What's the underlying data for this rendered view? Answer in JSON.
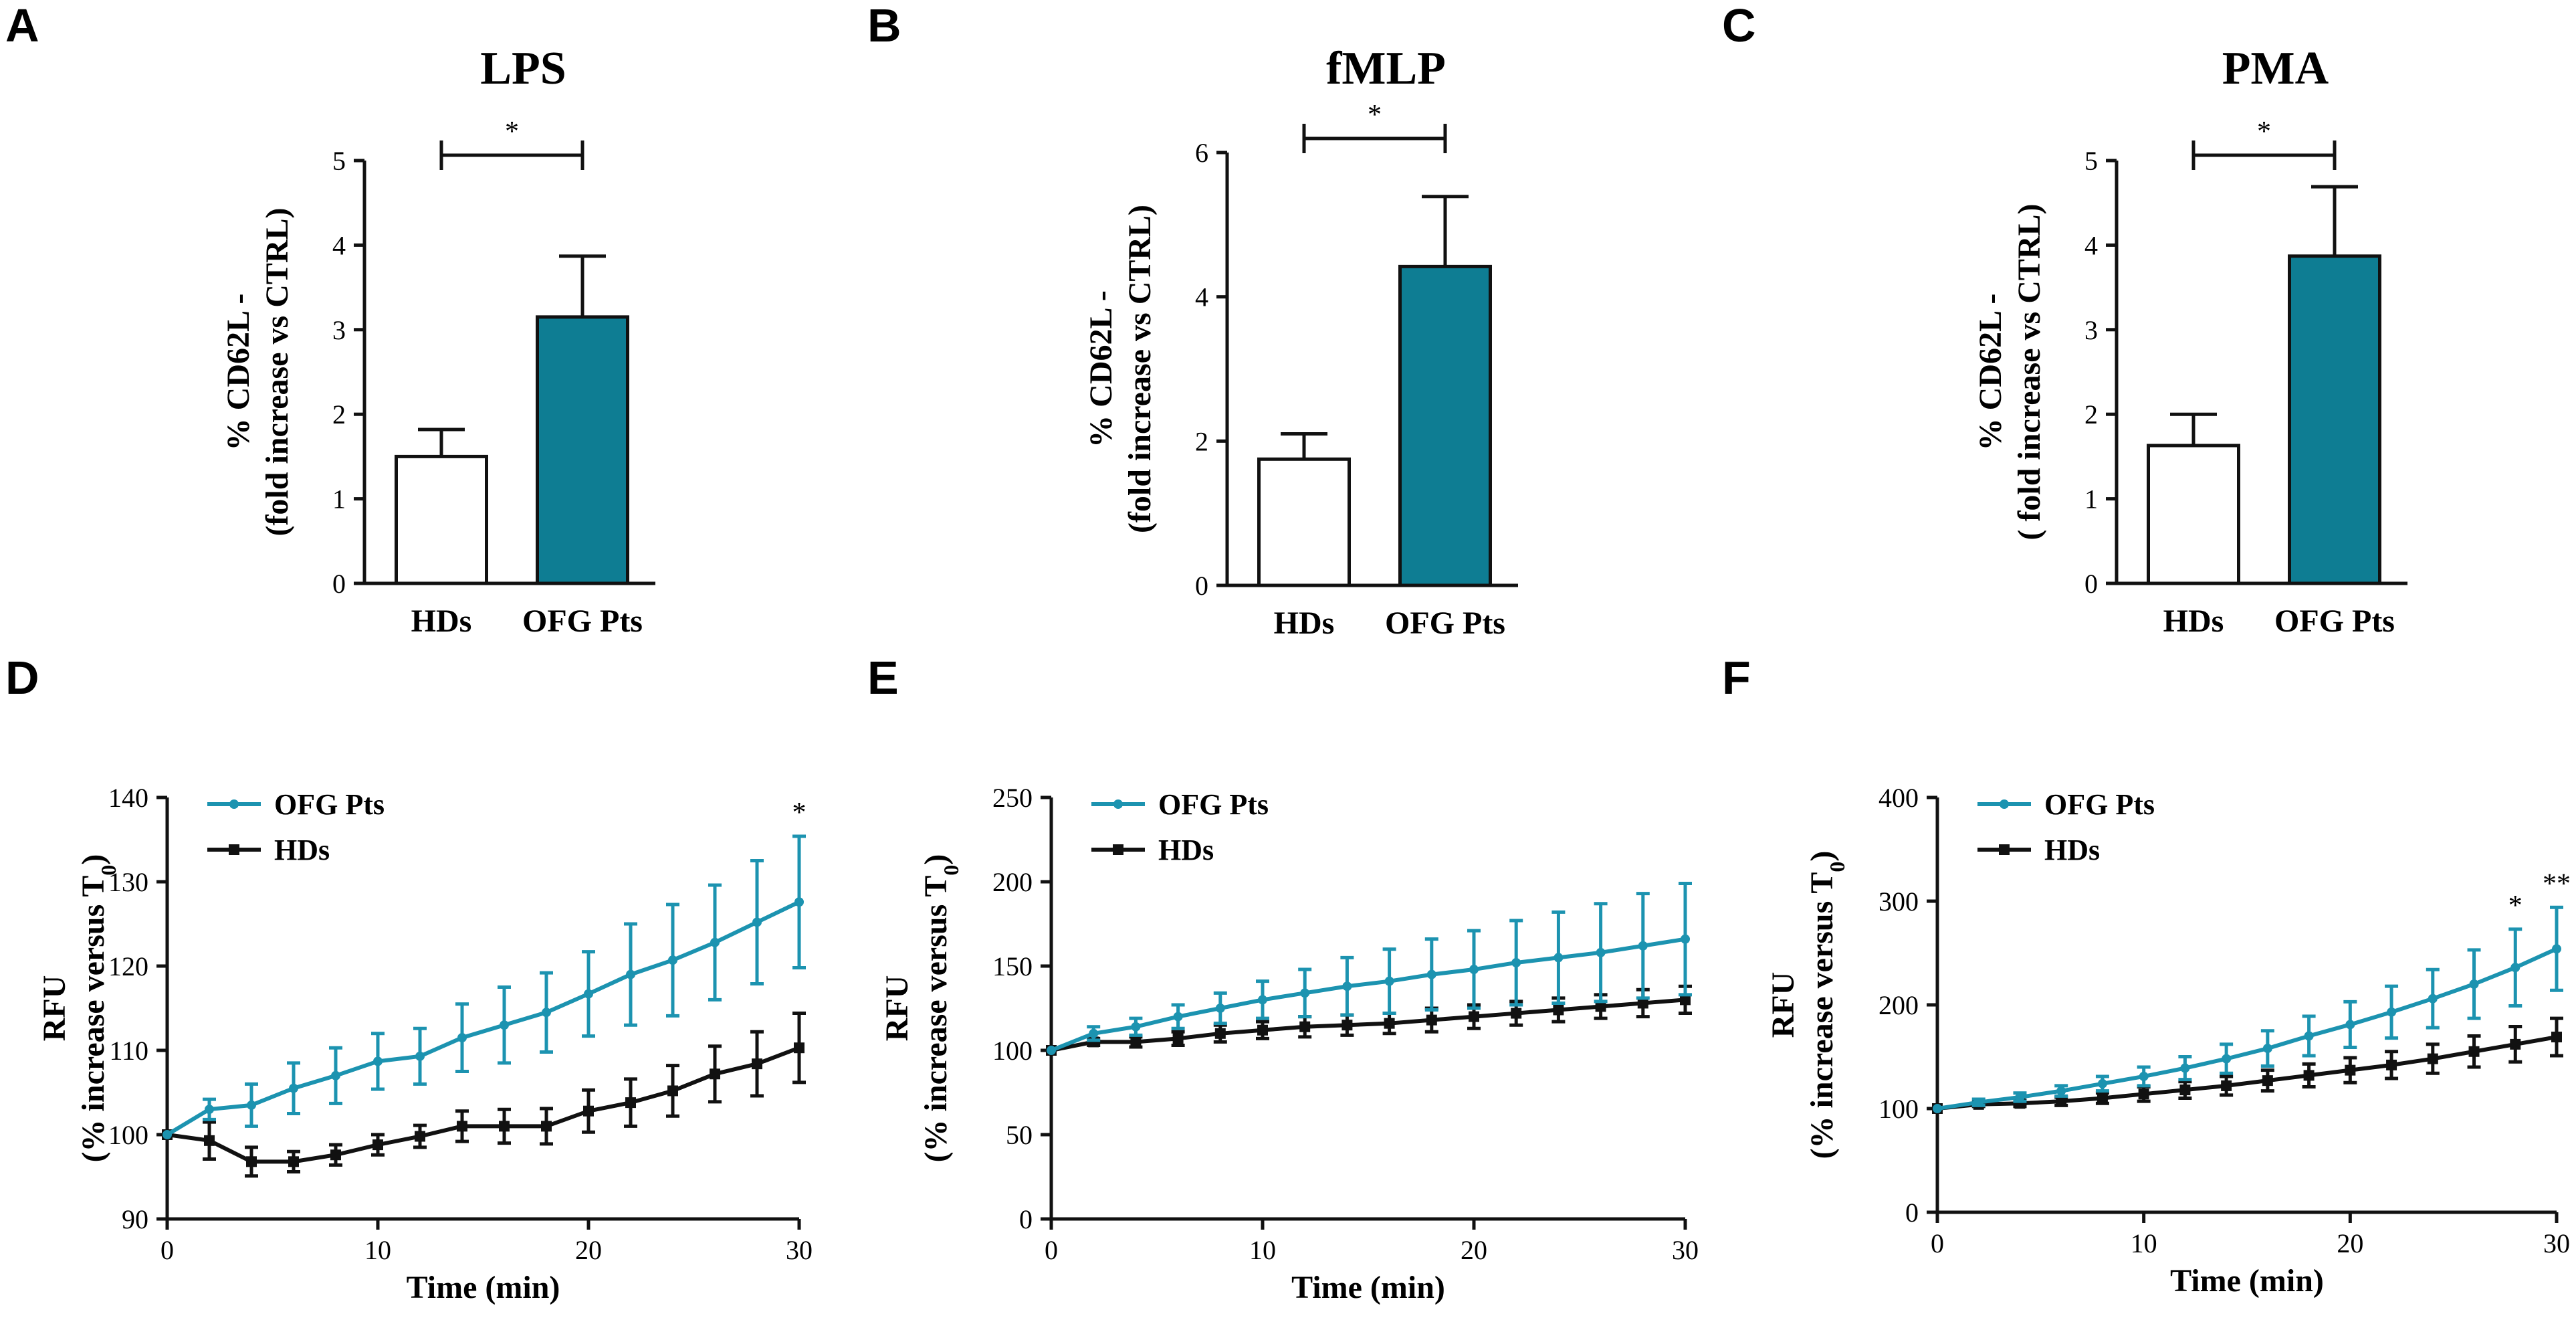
{
  "colors": {
    "teal": "#0e7d93",
    "line_teal": "#1c93b0",
    "black": "#111111",
    "white": "#ffffff"
  },
  "panels": {
    "A": {
      "letter": "A"
    },
    "B": {
      "letter": "B"
    },
    "C": {
      "letter": "C"
    },
    "D": {
      "letter": "D"
    },
    "E": {
      "letter": "E"
    },
    "F": {
      "letter": "F"
    }
  },
  "chart_data": [
    {
      "id": "A",
      "type": "bar",
      "title": "LPS",
      "ylabel": [
        "% CD62L -",
        "(fold increase vs CTRL)"
      ],
      "categories": [
        "HDs",
        "OFG Pts"
      ],
      "values": [
        1.5,
        3.15
      ],
      "errors": [
        0.32,
        0.72
      ],
      "ylim": [
        0,
        5
      ],
      "yticks": [
        "0",
        "1",
        "2",
        "3",
        "4",
        "5"
      ],
      "ytick_values": [
        0,
        1,
        2,
        3,
        4,
        5
      ],
      "significance": "*"
    },
    {
      "id": "B",
      "type": "bar",
      "title": "fMLP",
      "ylabel": [
        "% CD62L -",
        "(fold increase vs CTRL)"
      ],
      "categories": [
        "HDs",
        "OFG Pts"
      ],
      "values": [
        1.75,
        4.42
      ],
      "errors": [
        0.35,
        0.97
      ],
      "ylim": [
        0,
        6
      ],
      "yticks": [
        "0",
        "2",
        "4",
        "6"
      ],
      "ytick_values": [
        0,
        2,
        4,
        6
      ],
      "significance": "*"
    },
    {
      "id": "C",
      "type": "bar",
      "title": "PMA",
      "ylabel": [
        "% CD62L -",
        "( fold increase vs CTRL)"
      ],
      "categories": [
        "HDs",
        "OFG Pts"
      ],
      "values": [
        1.63,
        3.87
      ],
      "errors": [
        0.37,
        0.82
      ],
      "ylim": [
        0,
        5
      ],
      "yticks": [
        "0",
        "1",
        "2",
        "3",
        "4",
        "5"
      ],
      "ytick_values": [
        0,
        1,
        2,
        3,
        4,
        5
      ],
      "significance": "*"
    },
    {
      "id": "D",
      "type": "line",
      "xlabel": "Time (min)",
      "ylabel": [
        "RFU",
        "(% increase versus T",
        "0",
        ")"
      ],
      "x": [
        0,
        2,
        4,
        6,
        8,
        10,
        12,
        14,
        16,
        18,
        20,
        22,
        24,
        26,
        28,
        30
      ],
      "xlim": [
        0,
        30
      ],
      "xticks": [
        "0",
        "10",
        "20",
        "30"
      ],
      "xtick_values": [
        0,
        10,
        20,
        30
      ],
      "ylim": [
        90,
        140
      ],
      "yticks": [
        "90",
        "100",
        "110",
        "120",
        "130",
        "140"
      ],
      "ytick_values": [
        90,
        100,
        110,
        120,
        130,
        140
      ],
      "series": [
        {
          "name": "OFG Pts",
          "values": [
            100,
            103,
            103.5,
            105.5,
            107,
            108.7,
            109.3,
            111.5,
            113,
            114.5,
            116.7,
            119,
            120.7,
            122.8,
            125.2,
            127.6
          ],
          "errors": [
            0,
            1.2,
            2.5,
            3,
            3.3,
            3.3,
            3.3,
            4,
            4.5,
            4.7,
            5,
            6,
            6.6,
            6.8,
            7.3,
            7.8
          ]
        },
        {
          "name": "HDs",
          "values": [
            100,
            99.3,
            96.8,
            96.8,
            97.6,
            98.8,
            99.8,
            101,
            101,
            101,
            102.8,
            103.8,
            105.2,
            107.2,
            108.4,
            110.3
          ],
          "errors": [
            0,
            2.2,
            1.7,
            1.2,
            1.2,
            1.2,
            1.3,
            1.8,
            2,
            2.1,
            2.5,
            2.8,
            3,
            3.3,
            3.8,
            4.1
          ]
        }
      ],
      "annotations": [
        {
          "x": 30,
          "text": "*"
        }
      ]
    },
    {
      "id": "E",
      "type": "line",
      "xlabel": "Time (min)",
      "ylabel": [
        "RFU",
        "(% increase versus T",
        "0",
        ")"
      ],
      "x": [
        0,
        2,
        4,
        6,
        8,
        10,
        12,
        14,
        16,
        18,
        20,
        22,
        24,
        26,
        28,
        30
      ],
      "xlim": [
        0,
        30
      ],
      "xticks": [
        "0",
        "10",
        "20",
        "30"
      ],
      "xtick_values": [
        0,
        10,
        20,
        30
      ],
      "ylim": [
        0,
        250
      ],
      "yticks": [
        "0",
        "50",
        "100",
        "150",
        "200",
        "250"
      ],
      "ytick_values": [
        0,
        50,
        100,
        150,
        200,
        250
      ],
      "series": [
        {
          "name": "OFG Pts",
          "values": [
            100,
            110,
            114,
            120,
            125,
            130,
            134,
            138,
            141,
            145,
            148,
            152,
            155,
            158,
            162,
            166
          ],
          "errors": [
            0,
            4,
            5,
            7,
            9,
            11,
            14,
            17,
            19,
            21,
            23,
            25,
            27,
            29,
            31,
            33
          ]
        },
        {
          "name": "HDs",
          "values": [
            100,
            105,
            105,
            107,
            110,
            112,
            114,
            115,
            116,
            118,
            120,
            122,
            124,
            126,
            128,
            130
          ],
          "errors": [
            0,
            2,
            3,
            4,
            5,
            5,
            6,
            6,
            6,
            7,
            7,
            7,
            7,
            7,
            8,
            8
          ]
        }
      ],
      "annotations": []
    },
    {
      "id": "F",
      "type": "line",
      "xlabel": "Time (min)",
      "ylabel": [
        "RFU",
        "(% increase versus T",
        "0",
        ")"
      ],
      "x": [
        0,
        2,
        4,
        6,
        8,
        10,
        12,
        14,
        16,
        18,
        20,
        22,
        24,
        26,
        28,
        30
      ],
      "xlim": [
        0,
        30
      ],
      "xticks": [
        "0",
        "10",
        "20",
        "30"
      ],
      "xtick_values": [
        0,
        10,
        20,
        30
      ],
      "ylim": [
        0,
        400
      ],
      "yticks": [
        "0",
        "100",
        "200",
        "300",
        "400"
      ],
      "ytick_values": [
        0,
        100,
        200,
        300,
        400
      ],
      "series": [
        {
          "name": "OFG Pts",
          "values": [
            100,
            106,
            111,
            117,
            124,
            131,
            139,
            148,
            158,
            170,
            181,
            193,
            206,
            220,
            236,
            254
          ],
          "errors": [
            0,
            3,
            4,
            5,
            7,
            9,
            11,
            14,
            17,
            19,
            22,
            25,
            28,
            33,
            37,
            40
          ]
        },
        {
          "name": "HDs",
          "values": [
            100,
            104,
            105,
            107,
            110,
            114,
            118,
            122,
            127,
            132,
            137,
            142,
            148,
            155,
            162,
            169
          ],
          "errors": [
            0,
            2,
            3,
            4,
            5,
            7,
            8,
            9,
            10,
            11,
            12,
            13,
            14,
            15,
            17,
            18
          ]
        }
      ],
      "annotations": [
        {
          "x": 28,
          "text": "*"
        },
        {
          "x": 30,
          "text": "**"
        }
      ]
    }
  ]
}
